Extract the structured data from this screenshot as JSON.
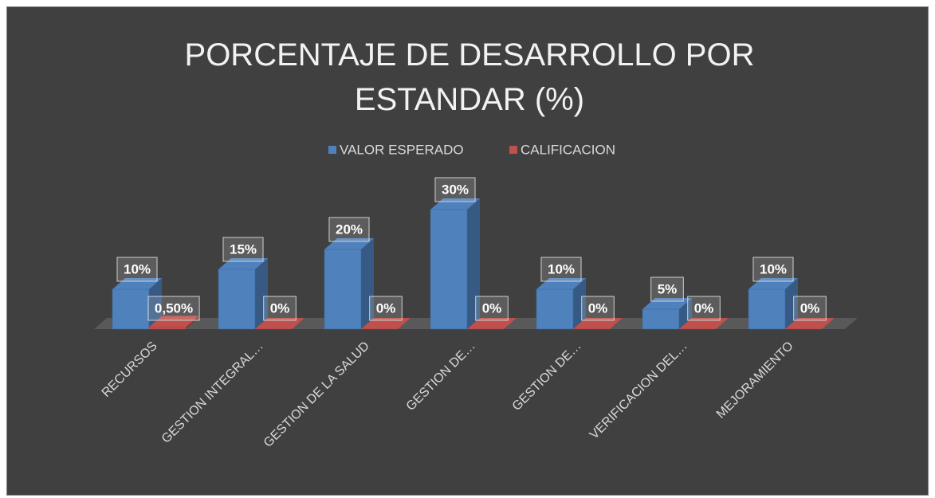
{
  "chart_data": {
    "type": "bar3d",
    "title": "PORCENTAJE DE DESARROLLO POR ESTANDAR (%)",
    "categories": [
      "RECURSOS",
      "GESTION INTEGRAL…",
      "GESTION DE LA SALUD",
      "GESTION DE…",
      "GESTION DE…",
      "VERIFICACION DEL…",
      "MEJORAMIENTO"
    ],
    "series": [
      {
        "name": "VALOR ESPERADO",
        "color": "#4f81bd",
        "values": [
          10,
          15,
          20,
          30,
          10,
          5,
          10
        ],
        "value_labels": [
          "10%",
          "15%",
          "20%",
          "30%",
          "10%",
          "5%",
          "10%"
        ]
      },
      {
        "name": "CALIFICACION",
        "color": "#c0504d",
        "values": [
          0.5,
          0,
          0,
          0,
          0,
          0,
          0
        ],
        "value_labels": [
          "0,50%",
          "0%",
          "0%",
          "0%",
          "0%",
          "0%",
          "0%"
        ]
      }
    ],
    "legend": "top"
  }
}
